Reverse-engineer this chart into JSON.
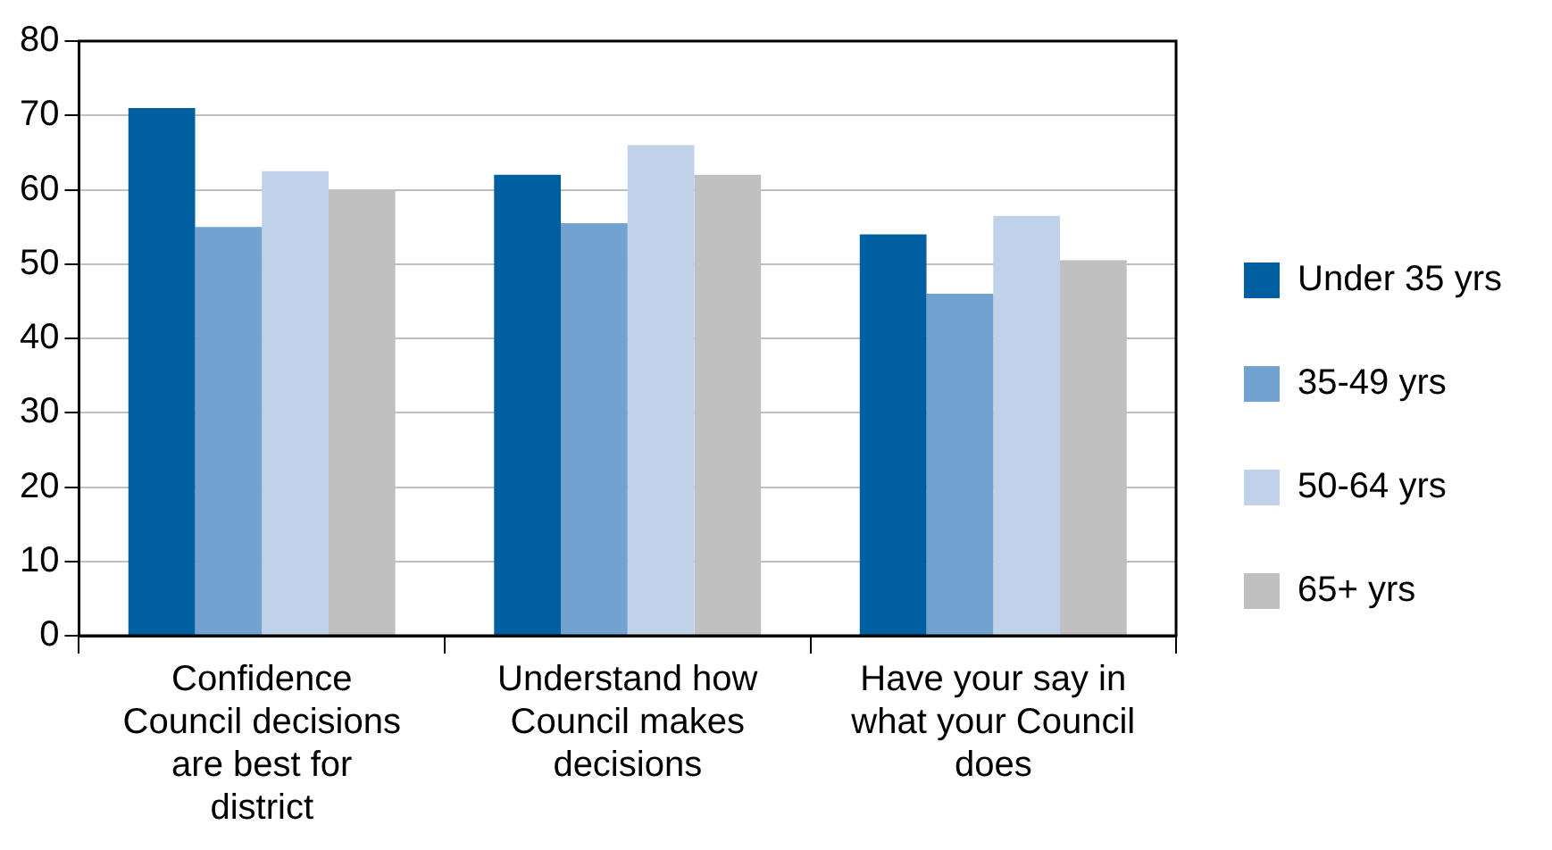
{
  "chart_data": {
    "type": "bar",
    "categories": [
      "Confidence Council decisions are best for district",
      "Understand how Council makes decisions",
      "Have your say in what your Council does"
    ],
    "series": [
      {
        "name": "Under 35 yrs",
        "color": "#005fa0",
        "values": [
          71,
          62,
          54
        ]
      },
      {
        "name": "35-49 yrs",
        "color": "#72a2cf",
        "values": [
          55,
          55.5,
          46
        ]
      },
      {
        "name": "50-64 yrs",
        "color": "#c0d2ea",
        "values": [
          62.5,
          66,
          56.5
        ]
      },
      {
        "name": "65+ yrs",
        "color": "#c0c0c0",
        "values": [
          60,
          62,
          50.5
        ]
      }
    ],
    "ylim": [
      0,
      80
    ],
    "yticks": [
      0,
      10,
      20,
      30,
      40,
      50,
      60,
      70,
      80
    ],
    "grid": "y",
    "legend": "right"
  }
}
